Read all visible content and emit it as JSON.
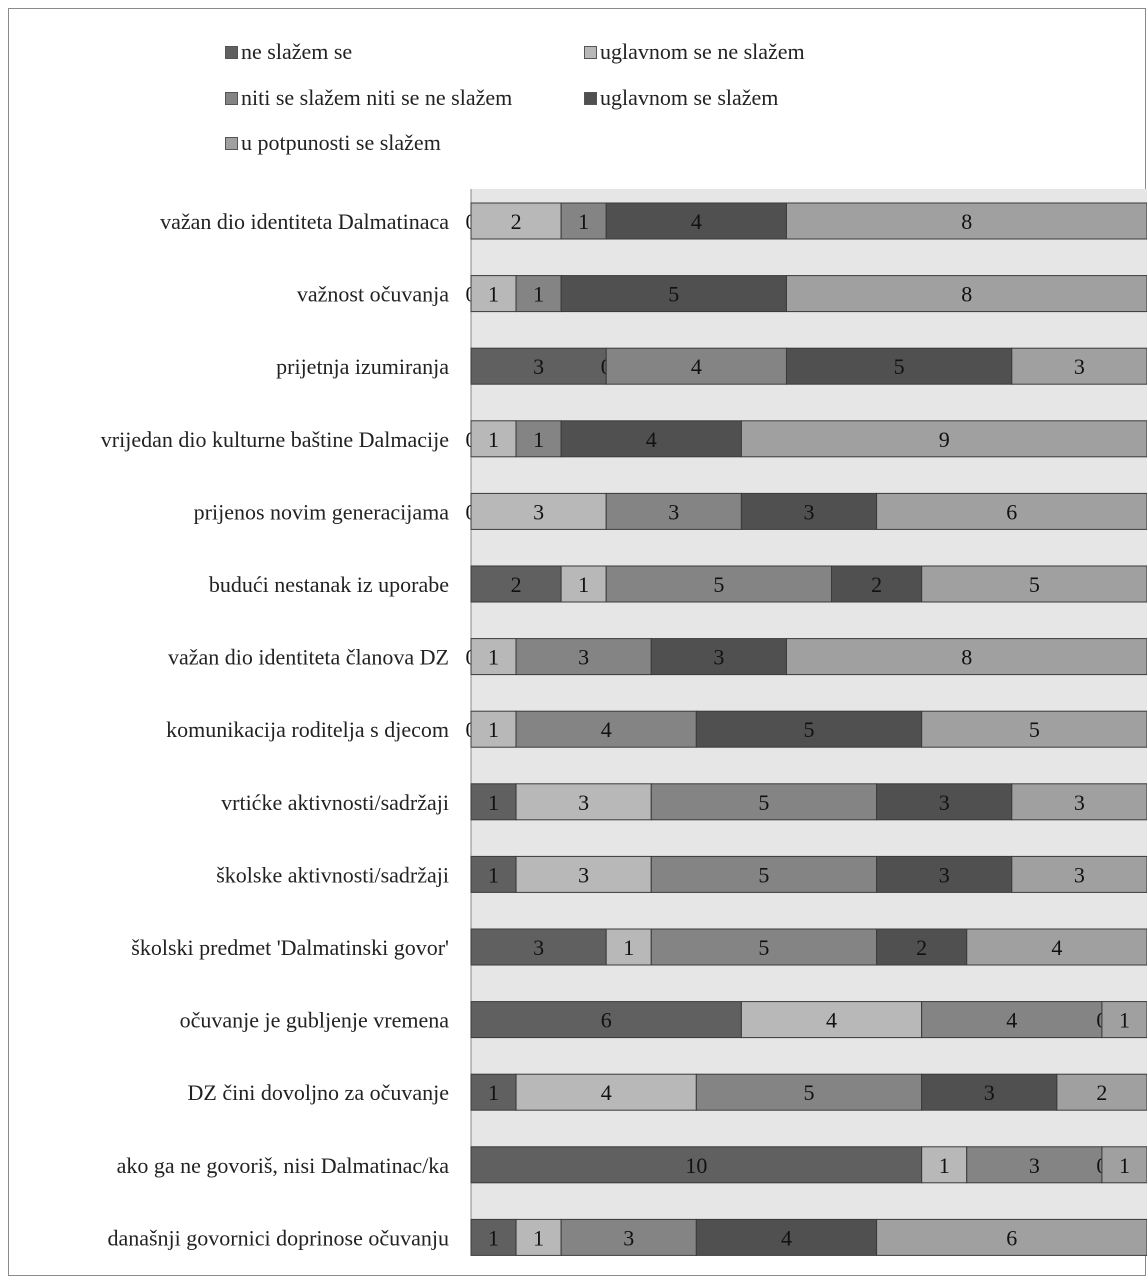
{
  "chart_data": {
    "type": "bar",
    "orientation": "horizontal",
    "stacked": true,
    "legend_position": "top",
    "xlim": [
      0,
      15
    ],
    "categories": [
      "važan dio identiteta Dalmatinaca",
      "važnost očuvanja",
      "prijetnja izumiranja",
      "vrijedan dio kulturne baštine Dalmacije",
      "prijenos novim generacijama",
      "budući nestanak iz uporabe",
      "važan dio identiteta članova DZ",
      "komunikacija roditelja s djecom",
      "vrtićke aktivnosti/sadržaji",
      "školske aktivnosti/sadržaji",
      "školski predmet 'Dalmatinski govor'",
      "očuvanje je gubljenje vremena",
      "DZ čini dovoljno za očuvanje",
      "ako ga ne govoriš, nisi Dalmatinac/ka",
      "današnji govornici doprinose očuvanju"
    ],
    "series": [
      {
        "name": "ne slažem se",
        "color": "#606060",
        "values": [
          0,
          0,
          3,
          0,
          0,
          2,
          0,
          0,
          1,
          1,
          3,
          6,
          1,
          10,
          1
        ]
      },
      {
        "name": "uglavnom se ne slažem",
        "color": "#b8b8b8",
        "values": [
          2,
          1,
          0,
          1,
          3,
          1,
          1,
          1,
          3,
          3,
          1,
          4,
          4,
          1,
          1
        ]
      },
      {
        "name": "niti se slažem niti se ne slažem",
        "color": "#848484",
        "values": [
          1,
          1,
          4,
          1,
          3,
          5,
          3,
          4,
          5,
          5,
          5,
          4,
          5,
          3,
          3
        ]
      },
      {
        "name": "uglavnom se slažem",
        "color": "#505050",
        "values": [
          4,
          5,
          5,
          4,
          3,
          2,
          3,
          5,
          3,
          3,
          2,
          0,
          3,
          0,
          4
        ]
      },
      {
        "name": "u potpunosti se slažem",
        "color": "#a0a0a0",
        "values": [
          8,
          8,
          3,
          9,
          6,
          5,
          8,
          5,
          3,
          3,
          4,
          1,
          2,
          1,
          6
        ]
      }
    ],
    "plot_background": "#e6e6e6"
  }
}
